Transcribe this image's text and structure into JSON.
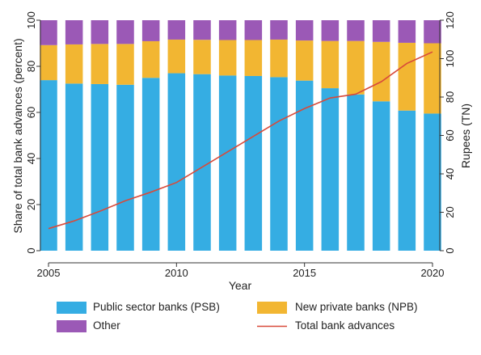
{
  "chart_data": {
    "type": "bar",
    "stacked": true,
    "percent_stacked": true,
    "xlabel": "Year",
    "ylabel": "Share of total bank advances (percent)",
    "y2label": "Rupees (TN)",
    "ylim": [
      0,
      100
    ],
    "y2lim": [
      0,
      120
    ],
    "x": [
      2005,
      2006,
      2007,
      2008,
      2009,
      2010,
      2011,
      2012,
      2013,
      2014,
      2015,
      2016,
      2017,
      2018,
      2019,
      2020
    ],
    "x_ticks": [
      2005,
      2010,
      2015,
      2020
    ],
    "y_ticks": [
      0,
      20,
      40,
      60,
      80,
      100
    ],
    "y2_ticks": [
      0,
      20,
      40,
      60,
      80,
      100,
      120
    ],
    "grid": false,
    "legend_position": "bottom",
    "series": [
      {
        "name": "Public sector banks (PSB)",
        "axis": "left",
        "mark": "bar",
        "color": "#35ade3",
        "values": [
          74.0,
          72.5,
          72.3,
          72.0,
          75.0,
          77.0,
          76.6,
          76.0,
          75.8,
          75.3,
          73.8,
          70.5,
          67.8,
          64.8,
          60.8,
          59.5
        ]
      },
      {
        "name": "New private banks (NPB)",
        "axis": "left",
        "mark": "bar",
        "color": "#f2b632",
        "values": [
          15.2,
          17.0,
          17.4,
          17.7,
          15.9,
          14.6,
          14.9,
          15.4,
          15.6,
          16.3,
          17.4,
          20.5,
          23.2,
          25.8,
          29.4,
          30.5
        ]
      },
      {
        "name": "Other",
        "axis": "left",
        "mark": "bar",
        "color": "#9b59b6",
        "values": [
          10.8,
          10.5,
          10.3,
          10.3,
          9.1,
          8.4,
          8.5,
          8.6,
          8.6,
          8.4,
          8.8,
          9.0,
          9.0,
          9.4,
          9.8,
          10.0
        ]
      },
      {
        "name": "Total bank advances",
        "axis": "right",
        "mark": "line",
        "color": "#d84a3a",
        "values": [
          11.5,
          15.5,
          20.5,
          26.0,
          30.5,
          35.5,
          43.5,
          51.5,
          59.5,
          67.5,
          74.0,
          79.5,
          81.5,
          88.0,
          97.5,
          103.5
        ]
      }
    ]
  }
}
